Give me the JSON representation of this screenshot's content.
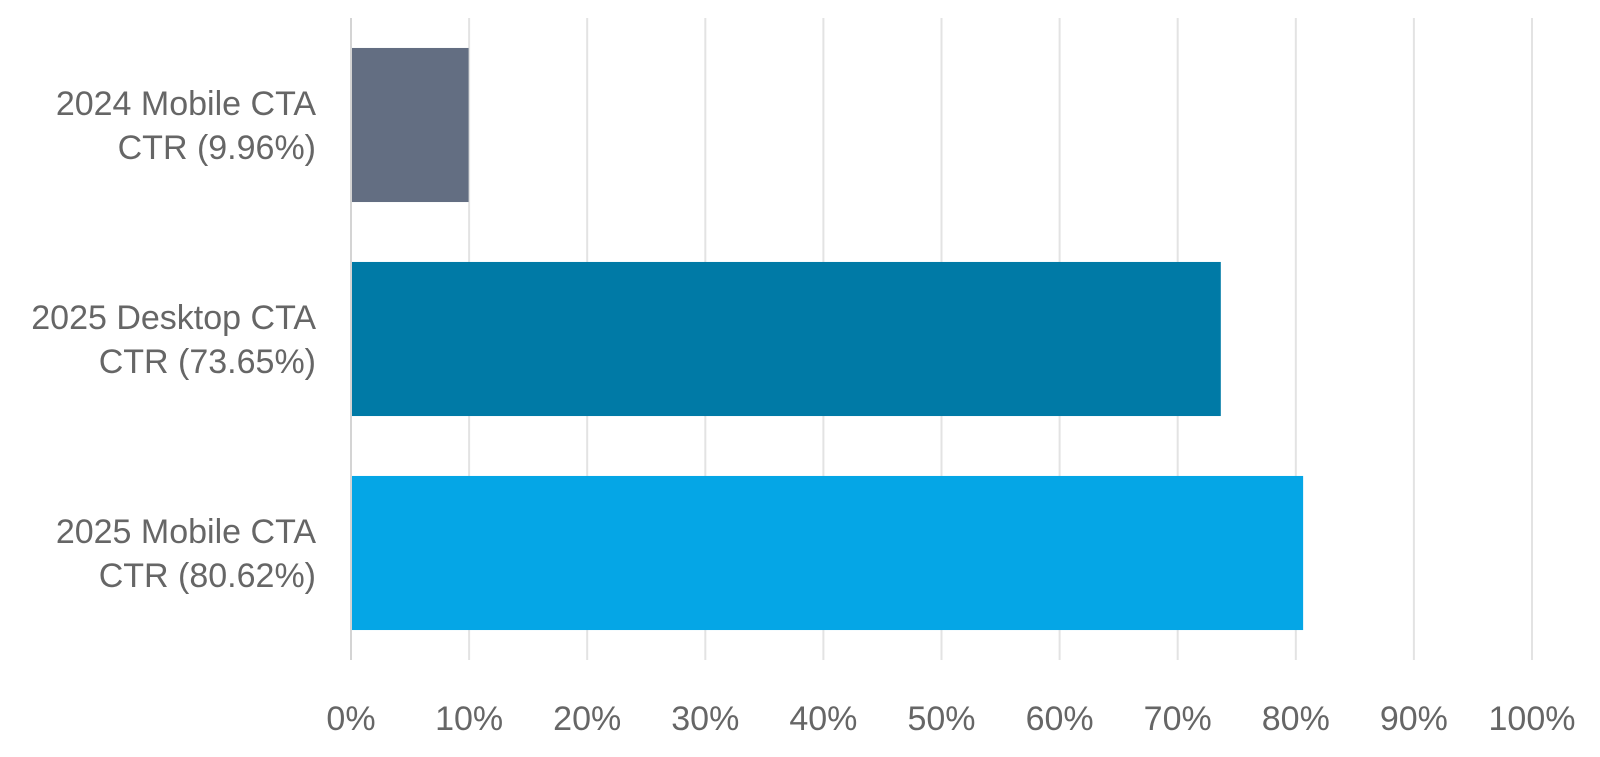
{
  "chart_data": {
    "type": "bar",
    "orientation": "horizontal",
    "title": "",
    "xlabel": "",
    "ylabel": "",
    "categories": [
      [
        "2024 Mobile CTA",
        "CTR (9.96%)"
      ],
      [
        "2025 Desktop CTA",
        "CTR (73.65%)"
      ],
      [
        "2025 Mobile CTA",
        "CTR (80.62%)"
      ]
    ],
    "values": [
      9.96,
      73.65,
      80.62
    ],
    "colors": [
      "#636e82",
      "#007aa6",
      "#05a6e6"
    ],
    "xlim": [
      0,
      100
    ],
    "xticks": [
      0,
      10,
      20,
      30,
      40,
      50,
      60,
      70,
      80,
      90,
      100
    ],
    "xtick_labels": [
      "0%",
      "10%",
      "20%",
      "30%",
      "40%",
      "50%",
      "60%",
      "70%",
      "80%",
      "90%",
      "100%"
    ],
    "grid": true,
    "legend": "none"
  }
}
